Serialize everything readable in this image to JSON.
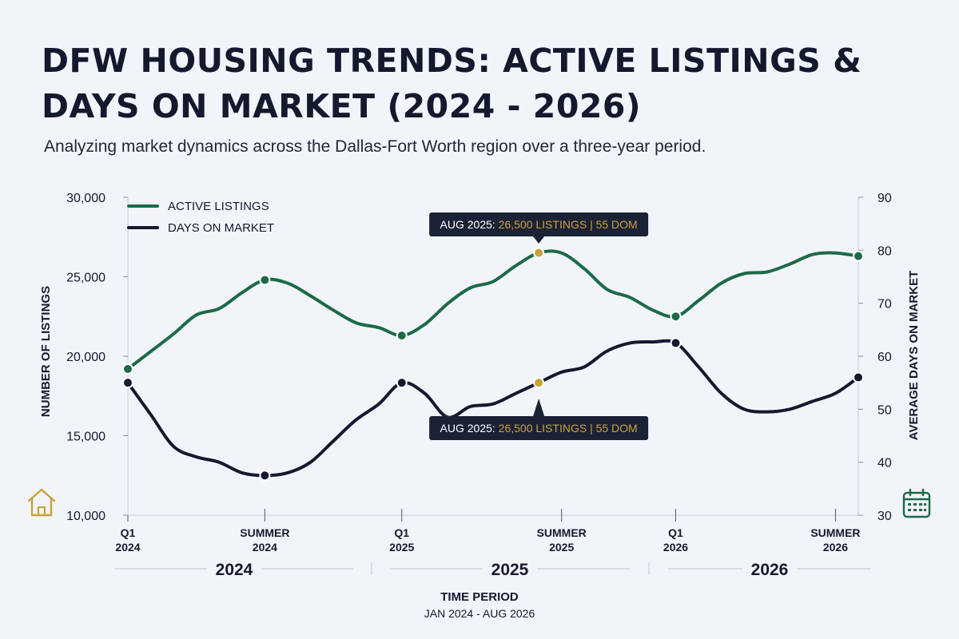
{
  "title": "DFW HOUSING TRENDS: ACTIVE LISTINGS & DAYS ON MARKET (2024 - 2026)",
  "subtitle": "Analyzing market dynamics across the Dallas-Fort Worth region over a three-year period.",
  "colors": {
    "listings": "#1c6a47",
    "dom": "#15192e",
    "highlight": "#c9a23a",
    "tooltip_bg": "#1c2236"
  },
  "icons": {
    "left": "house-icon",
    "right": "calendar-icon"
  },
  "chart_data": {
    "type": "line",
    "x_axis": {
      "label": "TIME PERIOD",
      "sublabel": "JAN 2024 - AUG 2026",
      "ticks": [
        {
          "l1": "Q1",
          "l2": "2024",
          "t": 0
        },
        {
          "l1": "SUMMER",
          "l2": "2024",
          "t": 6
        },
        {
          "l1": "Q1",
          "l2": "2025",
          "t": 12
        },
        {
          "l1": "SUMMER",
          "l2": "2025",
          "t": 19
        },
        {
          "l1": "Q1",
          "l2": "2026",
          "t": 24
        },
        {
          "l1": "SUMMER",
          "l2": "2026",
          "t": 31
        }
      ],
      "years": [
        {
          "label": "2024",
          "from": 0,
          "to": 11
        },
        {
          "label": "2025",
          "from": 12,
          "to": 23
        },
        {
          "label": "2026",
          "from": 24,
          "to": 32
        }
      ]
    },
    "y_left": {
      "label": "NUMBER OF LISTINGS",
      "min": 10000,
      "max": 30000,
      "ticks": [
        "10,000",
        "15,000",
        "20,000",
        "25,000",
        "30,000"
      ]
    },
    "y_right": {
      "label": "AVERAGE DAYS ON MARKET",
      "min": 30,
      "max": 90,
      "ticks": [
        "30",
        "40",
        "50",
        "60",
        "70",
        "80",
        "90"
      ]
    },
    "legend": [
      "ACTIVE LISTINGS",
      "DAYS ON MARKET"
    ],
    "series": [
      {
        "name": "ACTIVE LISTINGS",
        "axis": "left",
        "x": [
          0,
          1,
          2,
          3,
          4,
          5,
          6,
          7,
          8,
          9,
          10,
          11,
          12,
          13,
          14,
          15,
          16,
          17,
          18,
          19,
          20,
          21,
          22,
          23,
          24,
          25,
          26,
          27,
          28,
          29,
          30,
          31,
          32
        ],
        "values": [
          19200,
          20300,
          21400,
          22600,
          23000,
          24000,
          24800,
          24600,
          23800,
          22900,
          22100,
          21800,
          21300,
          22000,
          23300,
          24300,
          24700,
          25700,
          26500,
          26500,
          25500,
          24200,
          23700,
          22900,
          22500,
          23500,
          24600,
          25200,
          25300,
          25800,
          26400,
          26500,
          26300
        ],
        "markers": [
          0,
          6,
          12,
          24,
          32
        ],
        "highlight": 18
      },
      {
        "name": "DAYS ON MARKET",
        "axis": "right",
        "x": [
          0,
          1,
          2,
          3,
          4,
          5,
          6,
          7,
          8,
          9,
          10,
          11,
          12,
          13,
          14,
          15,
          16,
          17,
          18,
          19,
          20,
          21,
          22,
          23,
          24,
          25,
          26,
          27,
          28,
          29,
          30,
          31,
          32
        ],
        "values": [
          55,
          49,
          43,
          41,
          40,
          38,
          37.5,
          38,
          40,
          44,
          48,
          51,
          55,
          53,
          48.5,
          50.5,
          51,
          53,
          55,
          57,
          58,
          61,
          62.5,
          62.7,
          62.5,
          58,
          53,
          50,
          49.5,
          50,
          51.5,
          53,
          56
        ],
        "markers": [
          0,
          6,
          12,
          24,
          32
        ],
        "highlight": 18
      }
    ],
    "annotations": [
      {
        "x": 18,
        "series": "ACTIVE LISTINGS",
        "prefix": "AUG 2025: ",
        "detail": "26,500 LISTINGS | 55 DOM",
        "position": "above"
      },
      {
        "x": 18,
        "series": "DAYS ON MARKET",
        "prefix": "AUG 2025: ",
        "detail": "26,500 LISTINGS | 55 DOM",
        "position": "below"
      }
    ]
  }
}
